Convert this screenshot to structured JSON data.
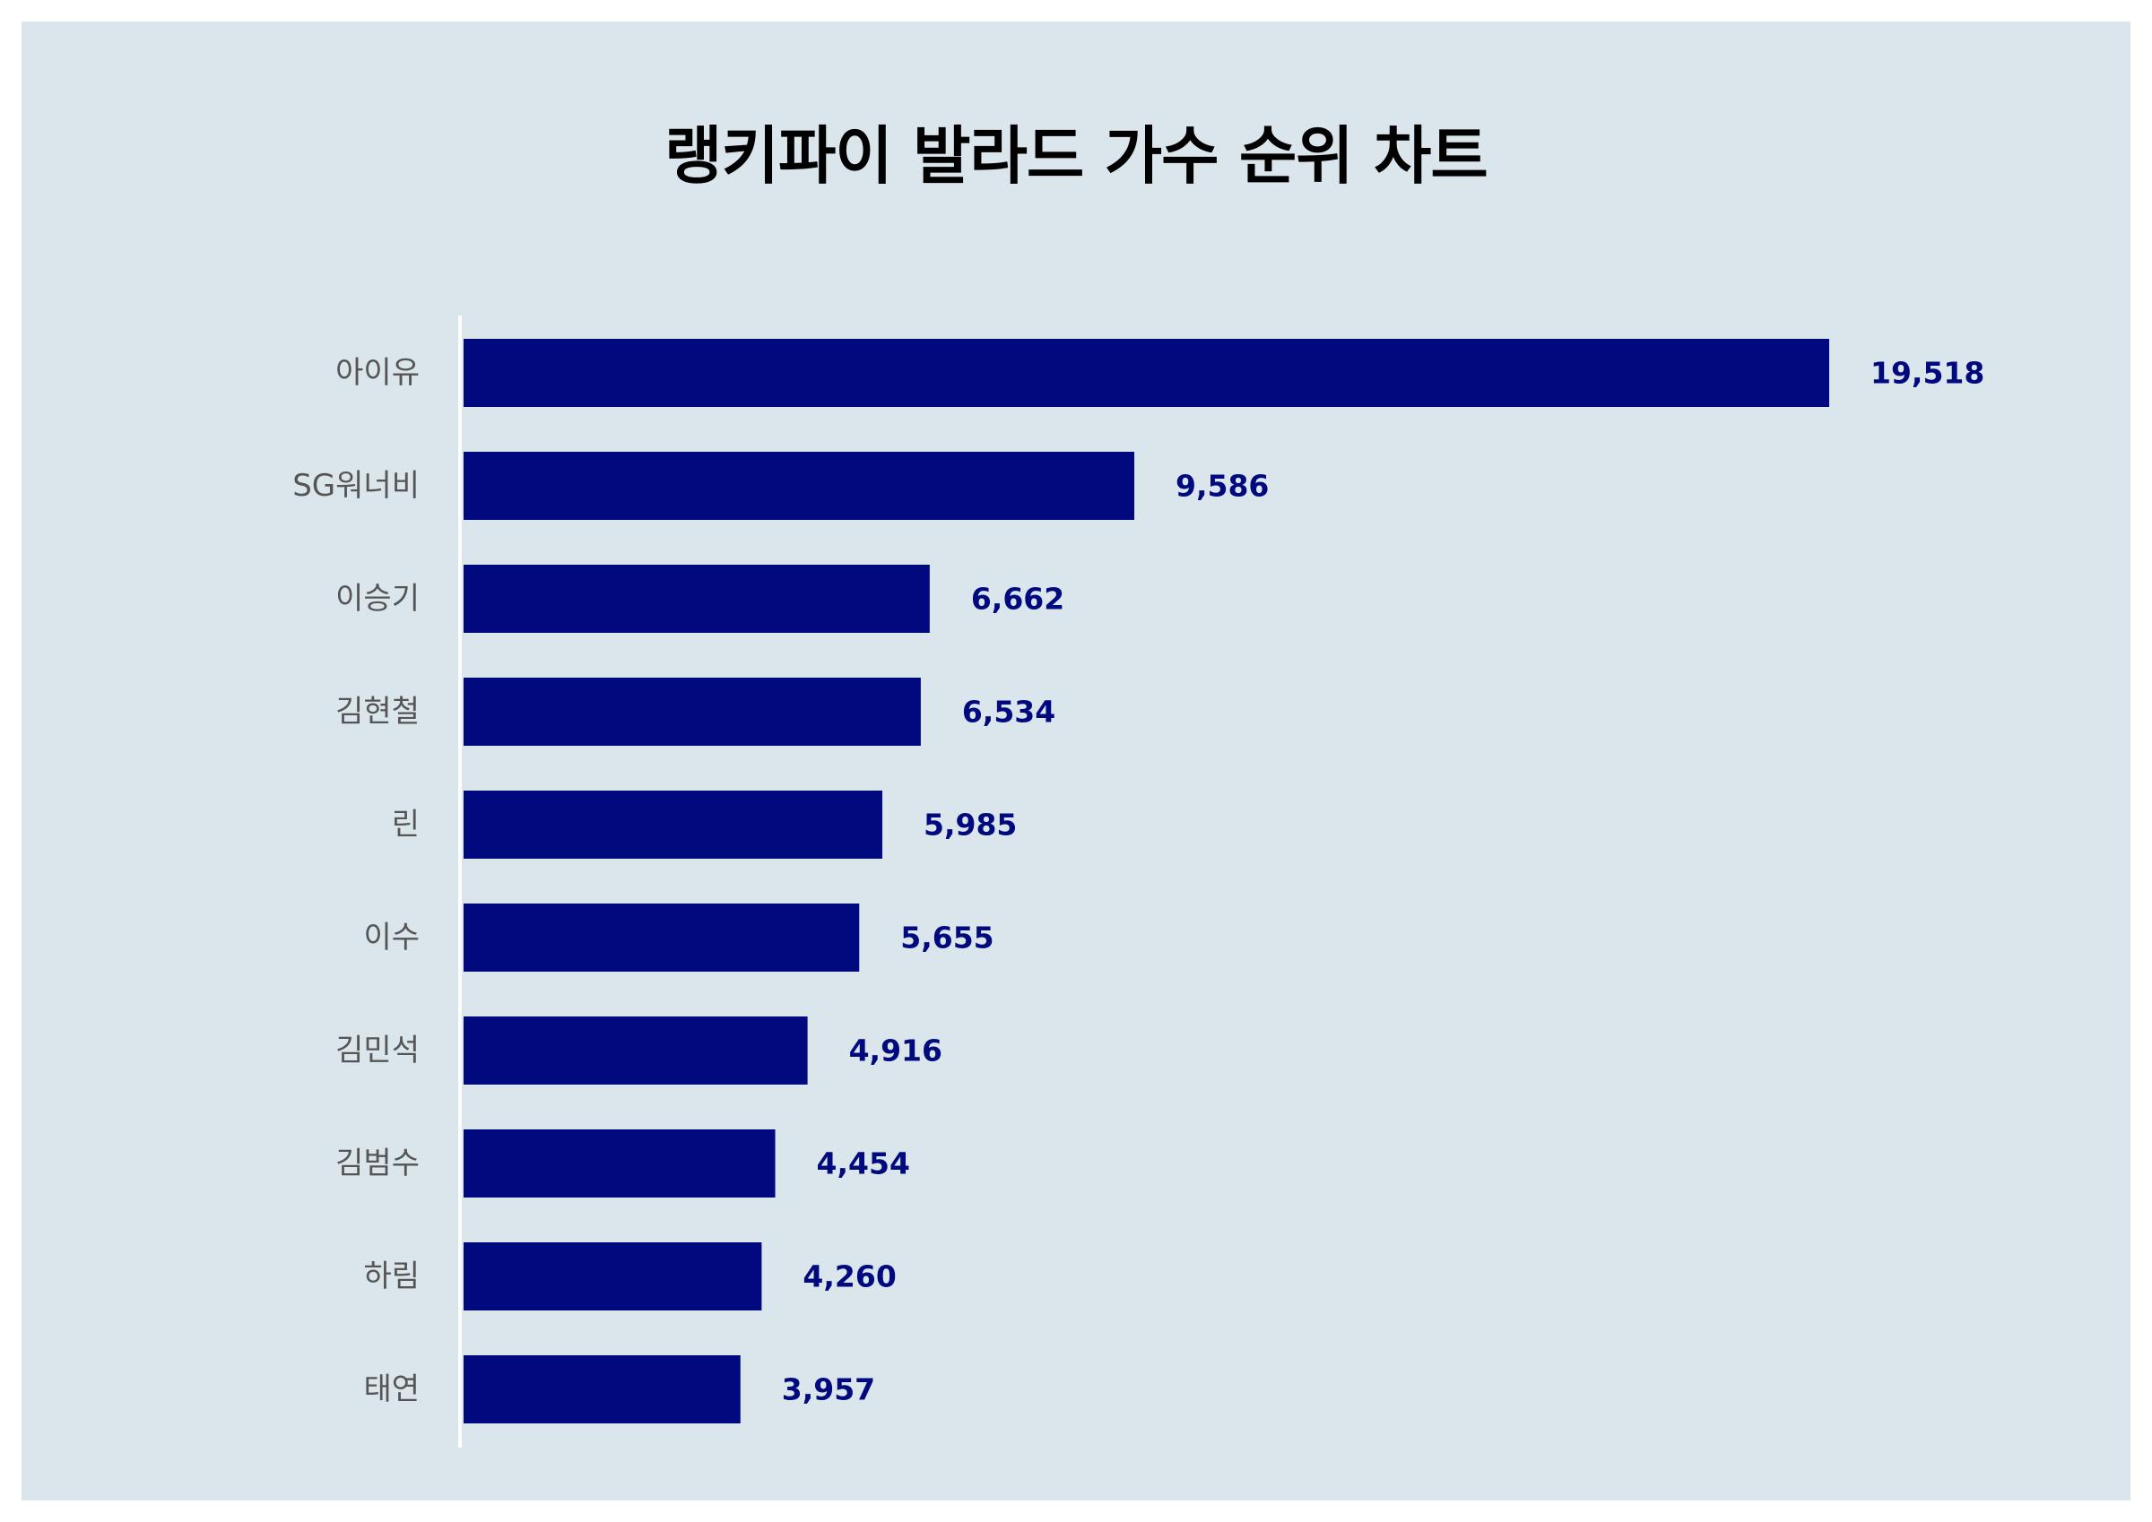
{
  "chart_data": {
    "type": "bar",
    "orientation": "horizontal",
    "title": "랭키파이 발라드 가수 순위 차트",
    "categories": [
      "아이유",
      "SG워너비",
      "이승기",
      "김현철",
      "린",
      "이수",
      "김민석",
      "김범수",
      "하림",
      "태연"
    ],
    "values": [
      19518,
      9586,
      6662,
      6534,
      5985,
      5655,
      4916,
      4454,
      4260,
      3957
    ],
    "value_labels": [
      "19,518",
      "9,586",
      "6,662",
      "6,534",
      "5,985",
      "5,655",
      "4,916",
      "4,454",
      "4,260",
      "3,957"
    ],
    "xlim": [
      0,
      20000
    ],
    "grid": false,
    "colors": {
      "bar": "#000a7e",
      "value_label": "#000a7e",
      "category_label": "#555555",
      "background": "#dbe6ec",
      "axis_line": "#ffffff"
    }
  }
}
